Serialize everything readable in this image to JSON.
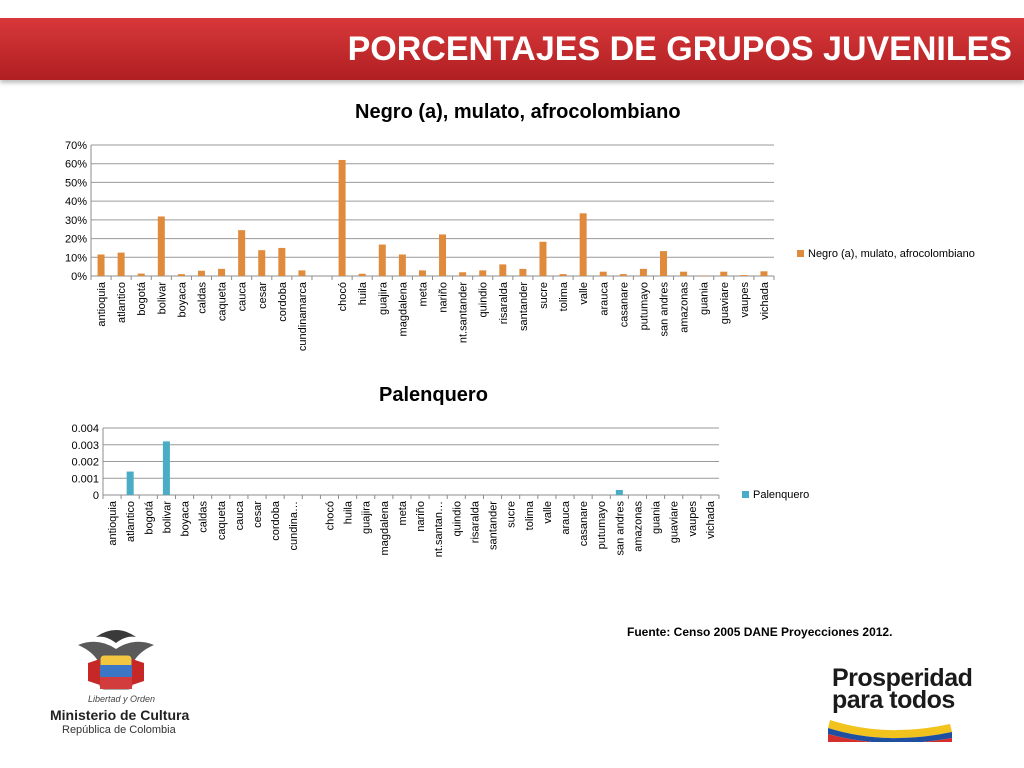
{
  "header": {
    "title": "PORCENTAJES DE GRUPOS JUVENILES"
  },
  "source": "Fuente: Censo 2005 DANE Proyecciones  2012.",
  "logo_left": {
    "motto": "Libertad y Orden",
    "name": "Ministerio de Cultura",
    "sub": "República de Colombia"
  },
  "logo_right": {
    "line1": "Prosperidad",
    "line2": "para todos"
  },
  "colors": {
    "header": "#c8292c",
    "series1": "#e08a3c",
    "series2": "#4bacc6"
  },
  "chart_data": [
    {
      "type": "bar",
      "title": "Negro (a), mulato, afrocolombiano",
      "categories": [
        "antioquia",
        "atlantico",
        "bogotá",
        "bolivar",
        "boyaca",
        "caldas",
        "caqueta",
        "cauca",
        "cesar",
        "cordoba",
        "cundinamarca",
        "",
        "chocó",
        "huila",
        "guajira",
        "magdalena",
        "meta",
        "nariño",
        "nt.santander",
        "quindio",
        "risaralda",
        "santander",
        "sucre",
        "tolima",
        "valle",
        "arauca",
        "casanare",
        "putumayo",
        "san andres",
        "amazonas",
        "guania",
        "guaviare",
        "vaupes",
        "vichada"
      ],
      "series": [
        {
          "name": "Negro (a), mulato, afrocolombiano",
          "values": [
            0.115,
            0.125,
            0.013,
            0.318,
            0.01,
            0.028,
            0.038,
            0.245,
            0.138,
            0.15,
            0.03,
            0,
            0.62,
            0.012,
            0.168,
            0.115,
            0.03,
            0.222,
            0.02,
            0.03,
            0.062,
            0.038,
            0.183,
            0.01,
            0.335,
            0.023,
            0.01,
            0.038,
            0.133,
            0.023,
            0.003,
            0.023,
            0.005,
            0.025
          ]
        }
      ],
      "y_ticks": [
        "0%",
        "10%",
        "20%",
        "30%",
        "40%",
        "50%",
        "60%",
        "70%"
      ],
      "ylim": [
        0,
        0.7
      ],
      "grid": true,
      "legend": "right"
    },
    {
      "type": "bar",
      "title": "Palenquero",
      "categories": [
        "antioquia",
        "atlantico",
        "bogotá",
        "bolivar",
        "boyaca",
        "caldas",
        "caqueta",
        "cauca",
        "cesar",
        "cordoba",
        "cundina…",
        "",
        "chocó",
        "huila",
        "guajira",
        "magdalena",
        "meta",
        "nariño",
        "nt.santan…",
        "quindio",
        "risaralda",
        "santander",
        "sucre",
        "tolima",
        "valle",
        "arauca",
        "casanare",
        "putumayo",
        "san andres",
        "amazonas",
        "guania",
        "guaviare",
        "vaupes",
        "vichada"
      ],
      "series": [
        {
          "name": "Palenquero",
          "values": [
            0,
            0.0014,
            0,
            0.0032,
            0,
            0,
            0,
            0,
            0,
            0,
            0,
            0,
            0,
            0,
            0,
            0,
            0,
            0,
            0,
            0,
            0,
            0,
            0,
            0,
            0,
            0,
            0,
            0,
            0.0003,
            0,
            0,
            0,
            0,
            0
          ]
        }
      ],
      "y_ticks": [
        "0",
        "0.001",
        "0.002",
        "0.003",
        "0.004"
      ],
      "ylim": [
        0,
        0.004
      ],
      "grid": true,
      "legend": "right"
    }
  ]
}
